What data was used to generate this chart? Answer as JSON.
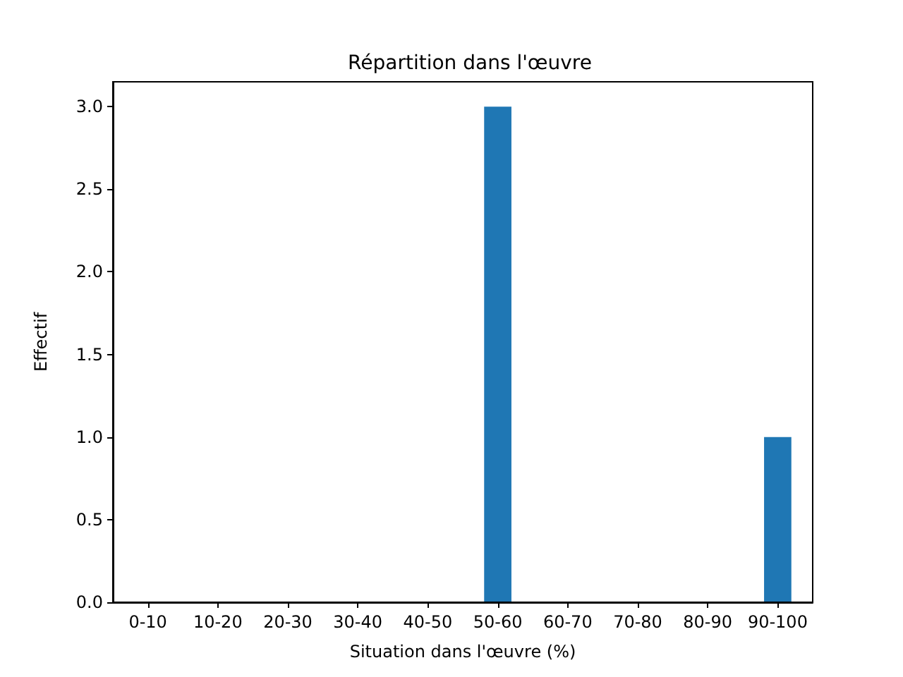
{
  "chart_data": {
    "type": "bar",
    "title": "Répartition dans l'œuvre",
    "xlabel": "Situation dans l'œuvre (%)",
    "ylabel": "Effectif",
    "categories": [
      "0-10",
      "10-20",
      "20-30",
      "30-40",
      "40-50",
      "50-60",
      "60-70",
      "70-80",
      "80-90",
      "90-100"
    ],
    "values": [
      0,
      0,
      0,
      0,
      0,
      3,
      0,
      0,
      0,
      1
    ],
    "color": "#1f77b4",
    "ylim": [
      0,
      3.15
    ],
    "yticks": [
      {
        "value": 0,
        "label": "0.0"
      },
      {
        "value": 0.5,
        "label": "0.5"
      },
      {
        "value": 1,
        "label": "1.0"
      },
      {
        "value": 1.5,
        "label": "1.5"
      },
      {
        "value": 2,
        "label": "2.0"
      },
      {
        "value": 2.5,
        "label": "2.5"
      },
      {
        "value": 3,
        "label": "3.0"
      }
    ],
    "grid": false
  }
}
